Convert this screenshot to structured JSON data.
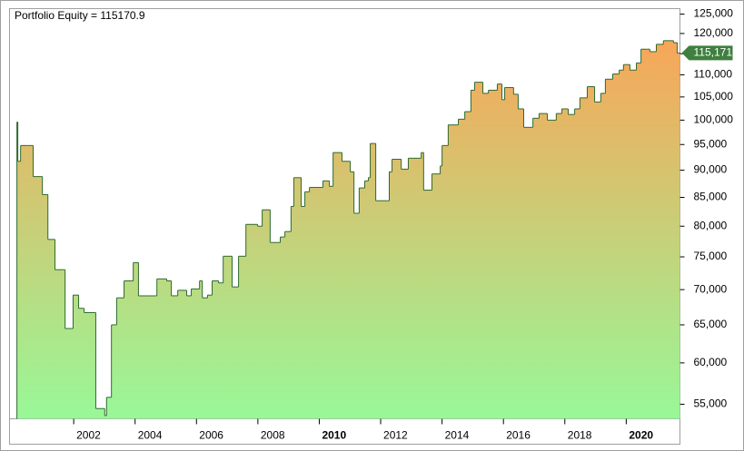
{
  "chart_data": {
    "type": "step-area",
    "title": "Portfolio Equity = 115170.9",
    "log_scale": true,
    "color": "#2e6b2e",
    "fill_top": "#f9a558",
    "fill_bottom": "#98f898",
    "xlim": [
      1999.91,
      2021.75
    ],
    "xticks": [
      2002,
      2004,
      2006,
      2008,
      2010,
      2012,
      2014,
      2016,
      2018,
      2020
    ],
    "bold_xticks": [
      2010,
      2020
    ],
    "ylim": [
      53340,
      126450
    ],
    "yticks": [
      {
        "value": 55000,
        "label": "55,000"
      },
      {
        "value": 60000,
        "label": "60,000"
      },
      {
        "value": 65000,
        "label": "65,000"
      },
      {
        "value": 70000,
        "label": "70,000"
      },
      {
        "value": 75000,
        "label": "75,000"
      },
      {
        "value": 80000,
        "label": "80,000"
      },
      {
        "value": 85000,
        "label": "85,000"
      },
      {
        "value": 90000,
        "label": "90,000"
      },
      {
        "value": 95000,
        "label": "95,000"
      },
      {
        "value": 100000,
        "label": "100,000"
      },
      {
        "value": 105000,
        "label": "105,000"
      },
      {
        "value": 110000,
        "label": "110,000"
      },
      {
        "value": 115000,
        "label": "115,000"
      },
      {
        "value": 120000,
        "label": "120,000"
      },
      {
        "value": 125000,
        "label": "125,000"
      }
    ],
    "last_label": "115,171",
    "x": [
      2000.15,
      2000.18,
      2000.27,
      2000.51,
      2000.68,
      2000.92,
      2000.98,
      2001.16,
      2001.39,
      2001.69,
      2001.72,
      2001.93,
      2001.98,
      2002.16,
      2002.34,
      2002.69,
      2002.72,
      2003.01,
      2003.07,
      2003.23,
      2003.4,
      2003.64,
      2003.94,
      2004.11,
      2004.65,
      2004.71,
      2005.03,
      2005.18,
      2005.39,
      2005.68,
      2005.83,
      2006.1,
      2006.19,
      2006.36,
      2006.51,
      2006.72,
      2006.87,
      2007.16,
      2007.37,
      2007.61,
      2007.99,
      2008.14,
      2008.4,
      2008.61,
      2008.73,
      2008.88,
      2009.08,
      2009.17,
      2009.41,
      2009.53,
      2009.68,
      2010.12,
      2010.33,
      2010.45,
      2010.74,
      2011.01,
      2011.13,
      2011.3,
      2011.48,
      2011.6,
      2011.66,
      2011.84,
      2012.19,
      2012.28,
      2012.37,
      2012.67,
      2012.9,
      2013.2,
      2013.32,
      2013.4,
      2013.67,
      2013.94,
      2014.0,
      2014.2,
      2014.53,
      2014.74,
      2014.94,
      2015.06,
      2015.33,
      2015.51,
      2015.8,
      2015.95,
      2016.04,
      2016.33,
      2016.48,
      2016.66,
      2016.96,
      2017.16,
      2017.43,
      2017.72,
      2017.9,
      2018.11,
      2018.32,
      2018.49,
      2018.73,
      2018.97,
      2019.17,
      2019.32,
      2019.56,
      2019.77,
      2019.91,
      2020.12,
      2020.33,
      2020.48,
      2020.68,
      2020.77,
      2020.98,
      2021.21,
      2021.54,
      2021.66
    ],
    "values": [
      99600,
      91700,
      94800,
      94800,
      88800,
      88800,
      85500,
      77800,
      73000,
      73000,
      64500,
      64500,
      69200,
      67300,
      66700,
      66700,
      54500,
      53700,
      55800,
      65000,
      68800,
      71300,
      74100,
      69100,
      69100,
      71600,
      71300,
      69100,
      69900,
      69100,
      70100,
      71300,
      68800,
      69200,
      71300,
      71000,
      75100,
      70400,
      75100,
      80300,
      80000,
      82800,
      77300,
      77300,
      78200,
      79100,
      83400,
      88600,
      83400,
      86000,
      86800,
      88000,
      87000,
      93400,
      91700,
      89700,
      82200,
      86700,
      88000,
      88600,
      95200,
      84400,
      84400,
      89700,
      92100,
      90200,
      92300,
      92300,
      93400,
      86300,
      89300,
      90800,
      94800,
      99000,
      100200,
      101800,
      106500,
      108300,
      105800,
      106500,
      107900,
      104400,
      107100,
      105600,
      102400,
      98500,
      100400,
      101400,
      100000,
      101400,
      102400,
      101200,
      102400,
      104800,
      107300,
      103900,
      105800,
      109000,
      110200,
      111100,
      112400,
      111100,
      112800,
      116100,
      116100,
      115500,
      117300,
      118200,
      117700,
      115170.9
    ]
  }
}
